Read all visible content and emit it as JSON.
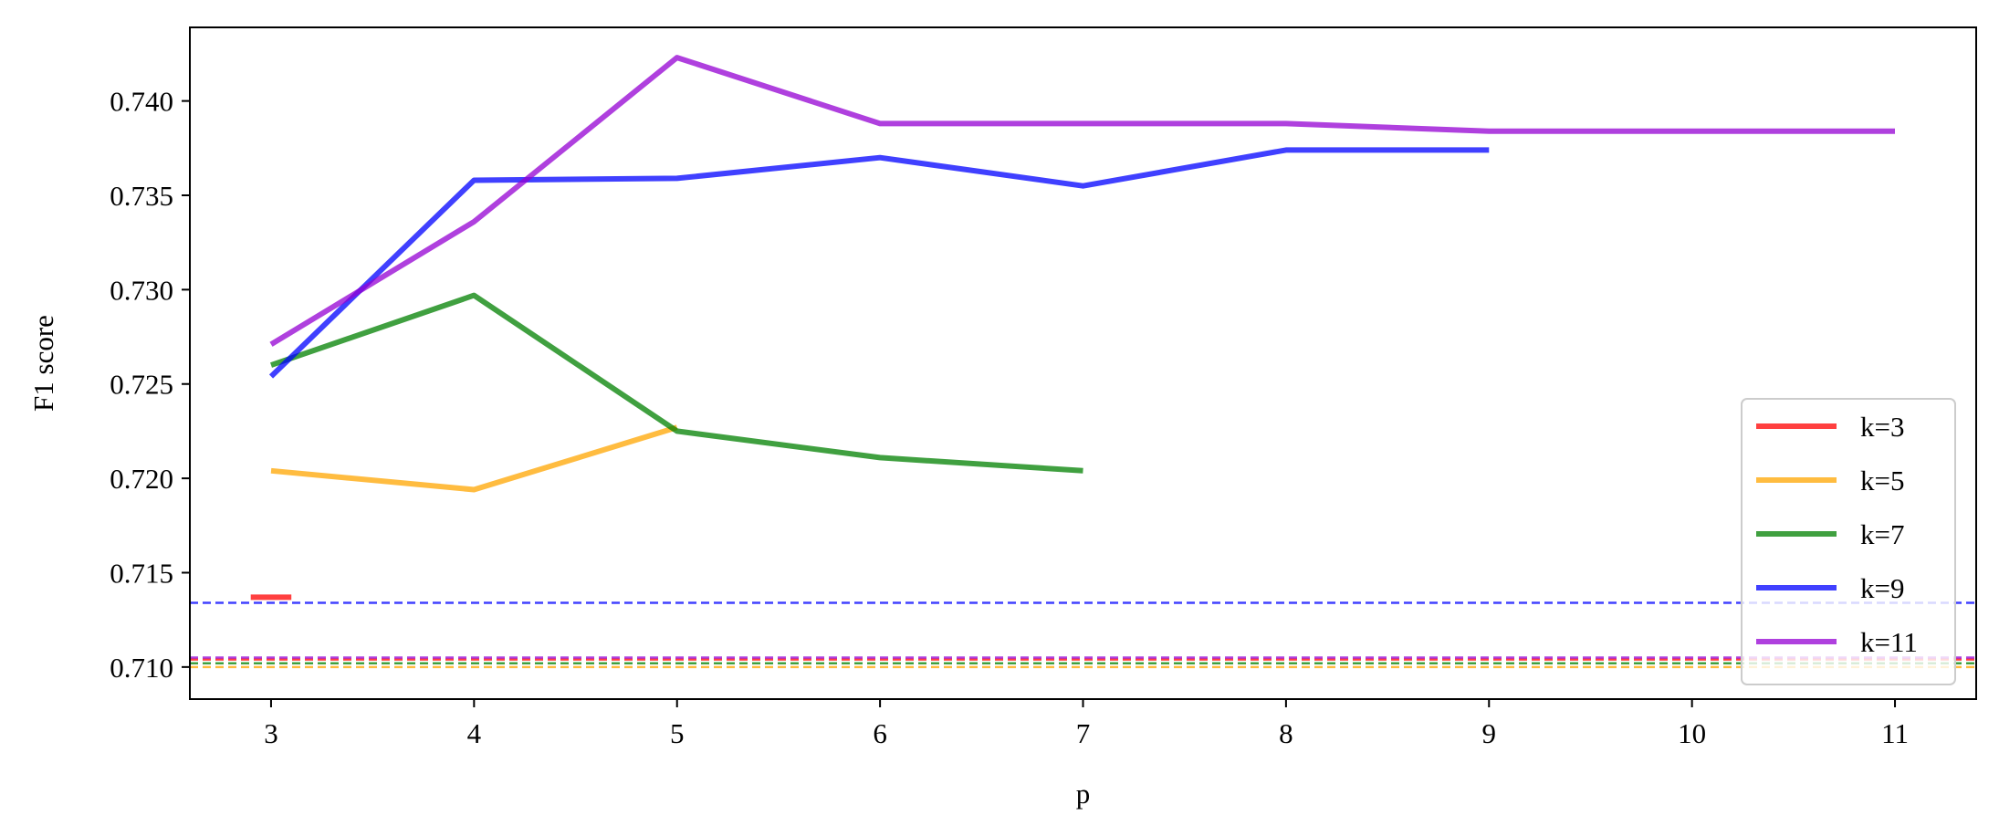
{
  "chart_data": {
    "type": "line",
    "title": "",
    "xlabel": "p",
    "ylabel": "F1 score",
    "xlim": [
      2.6,
      11.4
    ],
    "ylim": [
      0.7083,
      0.7439
    ],
    "x_ticks": [
      "3",
      "4",
      "5",
      "6",
      "7",
      "8",
      "9",
      "10",
      "11"
    ],
    "y_ticks": [
      "0.710",
      "0.715",
      "0.720",
      "0.725",
      "0.730",
      "0.735",
      "0.740"
    ],
    "x_tick_values": [
      3,
      4,
      5,
      6,
      7,
      8,
      9,
      10,
      11
    ],
    "y_tick_values": [
      0.71,
      0.715,
      0.72,
      0.725,
      0.73,
      0.735,
      0.74
    ],
    "grid": false,
    "legend_position": "lower-right",
    "series": [
      {
        "name": "k=3",
        "color": "#ff0000",
        "x": [
          2.9,
          3.1
        ],
        "values": [
          0.7137,
          0.7137
        ],
        "baseline": 0.7104
      },
      {
        "name": "k=5",
        "color": "#ffa500",
        "x": [
          3,
          4,
          5
        ],
        "values": [
          0.7204,
          0.7194,
          0.7227
        ],
        "baseline": 0.71
      },
      {
        "name": "k=7",
        "color": "#008000",
        "x": [
          3,
          4,
          5,
          6,
          7
        ],
        "values": [
          0.726,
          0.7297,
          0.7225,
          0.7211,
          0.7204
        ],
        "baseline": 0.7102
      },
      {
        "name": "k=9",
        "color": "#0000ff",
        "x": [
          3,
          4,
          5,
          6,
          7,
          8,
          9
        ],
        "values": [
          0.7254,
          0.7358,
          0.7359,
          0.737,
          0.7355,
          0.7374,
          0.7374
        ],
        "baseline": 0.7134
      },
      {
        "name": "k=11",
        "color": "#9400d3",
        "x": [
          3,
          4,
          5,
          6,
          7,
          8,
          9,
          10,
          11
        ],
        "values": [
          0.7271,
          0.7336,
          0.7423,
          0.7388,
          0.7388,
          0.7388,
          0.7384,
          0.7384,
          0.7384
        ],
        "baseline": 0.7105
      }
    ]
  }
}
